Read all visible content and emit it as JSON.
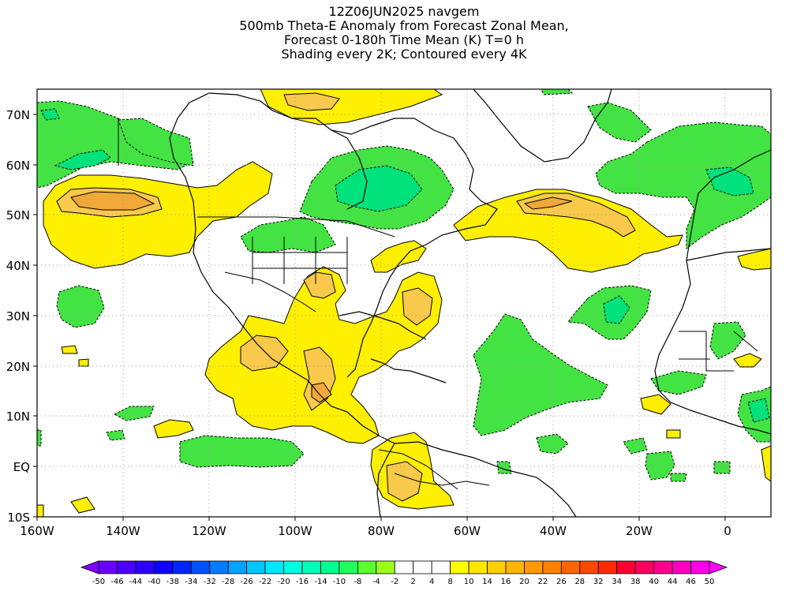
{
  "title": {
    "line1": "12Z06JUN2025 navgem",
    "line2": "500mb Theta-E Anomaly from Forecast Zonal Mean,",
    "line3": "Forecast 0-180h Time Mean (K) T=0 h",
    "line4": "Shading every 2K; Contoured every 4K"
  },
  "axes": {
    "lat_labels": [
      "70N",
      "60N",
      "50N",
      "40N",
      "30N",
      "20N",
      "10N",
      "EQ",
      "10S"
    ],
    "lon_labels": [
      "160W",
      "140W",
      "120W",
      "100W",
      "80W",
      "60W",
      "40W",
      "20W",
      "0"
    ]
  },
  "colorbar": {
    "labels": [
      "-50",
      "-46",
      "-44",
      "-40",
      "-38",
      "-34",
      "-32",
      "-28",
      "-26",
      "-22",
      "-20",
      "-16",
      "-14",
      "-10",
      "-8",
      "-4",
      "-2",
      "2",
      "4",
      "8",
      "10",
      "14",
      "16",
      "20",
      "22",
      "26",
      "28",
      "32",
      "34",
      "38",
      "40",
      "44",
      "46",
      "50"
    ],
    "colors": [
      "#8000ff",
      "#6a00ff",
      "#4b00ff",
      "#2d00ff",
      "#0f00ff",
      "#0025ff",
      "#0051ff",
      "#007dff",
      "#00a4ff",
      "#00c8ff",
      "#00e8ff",
      "#00ffe0",
      "#00ffb8",
      "#00ff8c",
      "#20ff60",
      "#5cff30",
      "#9cff1a",
      "#ffffff",
      "#ffffff",
      "#ffffff",
      "#ffff00",
      "#ffe800",
      "#ffcf00",
      "#ffb400",
      "#ff9a00",
      "#ff8000",
      "#ff6400",
      "#ff4800",
      "#ff2a00",
      "#ff0030",
      "#ff0060",
      "#ff0090",
      "#ff00c0",
      "#ff00e8",
      "#ff00ff"
    ]
  },
  "palette": {
    "green": "#3ee63e",
    "green_dark": "#00e27c",
    "yellow": "#ffef00",
    "orange": "#ffcf00",
    "orange_dark": "#f0a838"
  }
}
